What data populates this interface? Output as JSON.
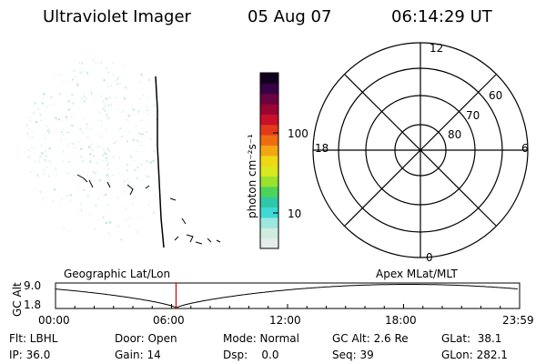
{
  "header": {
    "instrument": "Ultraviolet Imager",
    "date": "05 Aug 07",
    "time": "06:14:29 UT"
  },
  "colorbar": {
    "label": "photon cm⁻²s⁻¹",
    "ticks": [
      "100",
      "10"
    ],
    "colors": [
      "#e6ece9",
      "#d0ecdf",
      "#9ee7e0",
      "#3fd9d6",
      "#2fc9a8",
      "#4dd35a",
      "#9ae22e",
      "#d8e81f",
      "#f0d815",
      "#f3a513",
      "#ef6d12",
      "#e33a1b",
      "#c8102a",
      "#990633",
      "#6a0340",
      "#370145",
      "#10001e"
    ]
  },
  "polar": {
    "mlt_labels": {
      "top": "12",
      "left": "18",
      "right": "6",
      "bottom": "0"
    },
    "lat_labels": [
      "60",
      "70",
      "80"
    ]
  },
  "timeline": {
    "left_title": "Geographic Lat/Lon",
    "right_title": "Apex MLat/MLT",
    "y_label": "GC Alt",
    "y_max": "9.0",
    "y_min": "1.8",
    "x_ticks": [
      "00:00",
      "06:00",
      "12:00",
      "18:00",
      "23:59"
    ],
    "current_time": "06:14",
    "marker_color": "#d00000"
  },
  "info": {
    "filter": "Flt: LBHL",
    "ip": "IP: 36.0",
    "door": "Door: Open",
    "gain": "Gain: 14",
    "mode": "Mode: Normal",
    "dsp": "Dsp:    0.0",
    "gc_alt": "GC Alt: 2.6 Re",
    "seq": "Seq: 39",
    "glat": "GLat:  38.1",
    "glon": "GLon: 282.1"
  }
}
